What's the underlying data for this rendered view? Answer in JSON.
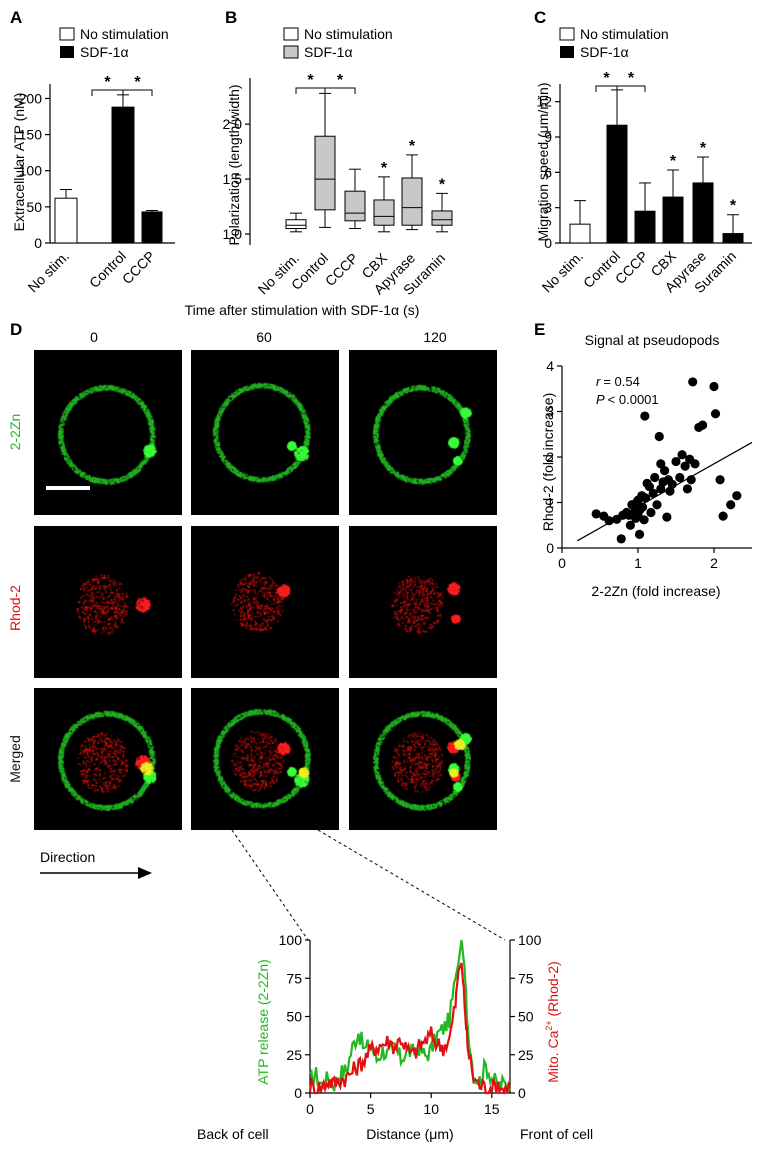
{
  "panels": {
    "A": {
      "letter": "A",
      "legend": {
        "none": "No stimulation",
        "sdf": "SDF-1α"
      },
      "sig": [
        "*",
        "*"
      ],
      "chart_data": {
        "type": "bar",
        "ylabel": "Extracellular ATP (nM)",
        "categories": [
          "No stim.",
          "Control",
          "CCCP"
        ],
        "values": [
          62,
          188,
          43
        ],
        "errors": [
          12,
          17,
          2
        ],
        "fills": [
          "white",
          "black",
          "black"
        ],
        "ylim": [
          0,
          200
        ],
        "yticks": [
          "0",
          "50",
          "100",
          "150",
          "200"
        ]
      }
    },
    "B": {
      "letter": "B",
      "legend": {
        "none": "No stimulation",
        "sdf": "SDF-1α"
      },
      "sig": [
        "*",
        "*",
        "*",
        "*",
        "*"
      ],
      "chart_data": {
        "type": "box",
        "ylabel": "Polarization (length/width)",
        "categories": [
          "No stim.",
          "Control",
          "CCCP",
          "CBX",
          "Apyrase",
          "Suramin"
        ],
        "boxes": [
          {
            "min": 1.02,
            "q1": 1.05,
            "median": 1.08,
            "q3": 1.13,
            "max": 1.19
          },
          {
            "min": 1.06,
            "q1": 1.22,
            "median": 1.5,
            "q3": 1.89,
            "max": 2.28
          },
          {
            "min": 1.05,
            "q1": 1.12,
            "median": 1.19,
            "q3": 1.39,
            "max": 1.59
          },
          {
            "min": 1.02,
            "q1": 1.08,
            "median": 1.16,
            "q3": 1.31,
            "max": 1.52
          },
          {
            "min": 1.04,
            "q1": 1.08,
            "median": 1.24,
            "q3": 1.51,
            "max": 1.72
          },
          {
            "min": 1.02,
            "q1": 1.08,
            "median": 1.13,
            "q3": 1.21,
            "max": 1.37
          }
        ],
        "fills": [
          "white",
          "gray",
          "gray",
          "gray",
          "gray",
          "gray"
        ],
        "ylim": [
          0.9,
          2.4
        ],
        "yticks": [
          "1.0",
          "1.5",
          "2.0"
        ]
      }
    },
    "C": {
      "letter": "C",
      "legend": {
        "none": "No stimulation",
        "sdf": "SDF-1α"
      },
      "sig": [
        "*",
        "*",
        "*",
        "*",
        "*"
      ],
      "chart_data": {
        "type": "bar",
        "ylabel": "Migration speed (μm/min)",
        "categories": [
          "No stim.",
          "Control",
          "CCCP",
          "CBX",
          "Apyrase",
          "Suramin"
        ],
        "values": [
          1.6,
          10,
          2.7,
          3.9,
          5.1,
          0.8
        ],
        "errors": [
          2.0,
          3.0,
          2.4,
          2.3,
          2.2,
          1.6
        ],
        "fills": [
          "white",
          "black",
          "black",
          "black",
          "black",
          "black"
        ],
        "ylim": [
          0,
          13
        ],
        "yticks": [
          "0",
          "3",
          "6",
          "9",
          "12"
        ]
      }
    },
    "D": {
      "letter": "D",
      "title": "Time after stimulation with SDF-1α (s)",
      "times": [
        "0",
        "60",
        "120"
      ],
      "rows": [
        "2-2Zn",
        "Rhod-2",
        "Merged"
      ],
      "direction_label": "Direction"
    },
    "E": {
      "letter": "E",
      "title": "Signal at pseudopods",
      "stat_r_label": "r",
      "stat_r_value": "= 0.54",
      "stat_p_label": "P",
      "stat_p_value": "< 0.0001",
      "chart_data": {
        "type": "scatter",
        "xlabel": "2-2Zn (fold increase)",
        "ylabel": "Rhod-2 (fold increase)",
        "xlim": [
          0,
          2.5
        ],
        "ylim": [
          0,
          4
        ],
        "xticks": [
          "0",
          "1",
          "2"
        ],
        "yticks": [
          "0",
          "1",
          "2",
          "3",
          "4"
        ],
        "fit": {
          "slope": 0.94,
          "intercept": -0.03
        },
        "points": [
          [
            0.45,
            0.75
          ],
          [
            0.55,
            0.7
          ],
          [
            0.62,
            0.6
          ],
          [
            0.72,
            0.63
          ],
          [
            0.78,
            0.2
          ],
          [
            0.8,
            0.72
          ],
          [
            0.85,
            0.78
          ],
          [
            0.88,
            0.72
          ],
          [
            0.9,
            0.5
          ],
          [
            0.92,
            0.95
          ],
          [
            0.95,
            0.78
          ],
          [
            0.97,
            0.65
          ],
          [
            0.98,
            1.0
          ],
          [
            1.0,
            0.75
          ],
          [
            1.0,
            1.05
          ],
          [
            1.02,
            0.3
          ],
          [
            1.03,
            0.85
          ],
          [
            1.05,
            1.15
          ],
          [
            1.06,
            0.9
          ],
          [
            1.08,
            0.62
          ],
          [
            1.09,
            2.9
          ],
          [
            1.1,
            1.1
          ],
          [
            1.12,
            1.42
          ],
          [
            1.15,
            1.35
          ],
          [
            1.17,
            0.78
          ],
          [
            1.2,
            1.2
          ],
          [
            1.22,
            1.55
          ],
          [
            1.25,
            0.95
          ],
          [
            1.28,
            2.45
          ],
          [
            1.3,
            1.85
          ],
          [
            1.3,
            1.3
          ],
          [
            1.33,
            1.45
          ],
          [
            1.35,
            1.7
          ],
          [
            1.38,
            0.68
          ],
          [
            1.4,
            1.5
          ],
          [
            1.42,
            1.25
          ],
          [
            1.45,
            1.4
          ],
          [
            1.5,
            1.9
          ],
          [
            1.55,
            1.55
          ],
          [
            1.58,
            2.05
          ],
          [
            1.62,
            1.8
          ],
          [
            1.65,
            1.3
          ],
          [
            1.68,
            1.95
          ],
          [
            1.7,
            1.5
          ],
          [
            1.72,
            3.65
          ],
          [
            1.75,
            1.85
          ],
          [
            1.8,
            2.65
          ],
          [
            1.85,
            2.7
          ],
          [
            2.0,
            3.55
          ],
          [
            2.02,
            2.95
          ],
          [
            2.08,
            1.5
          ],
          [
            2.12,
            0.7
          ],
          [
            2.22,
            0.95
          ],
          [
            2.3,
            1.15
          ]
        ]
      }
    },
    "profile": {
      "ylabel_left": "ATP release (2-2Zn)",
      "ylabel_right_prefix": "Mito. Ca",
      "ylabel_right_sup": "2+",
      "ylabel_right_suffix": " (Rhod-2)",
      "xlabel": "Distance (μm)",
      "back_label": "Back of cell",
      "front_label": "Front of cell",
      "chart_data": {
        "type": "line",
        "xlim": [
          0,
          16.5
        ],
        "ylim": [
          0,
          100
        ],
        "xticks": [
          "0",
          "5",
          "10",
          "15"
        ],
        "yticks": [
          "0",
          "25",
          "50",
          "75",
          "100"
        ],
        "series": [
          {
            "color": "#22b822",
            "x": [
              0,
              0.5,
              1,
              1.5,
              2,
              2.5,
              3,
              3.5,
              4,
              4.5,
              5,
              5.5,
              6,
              6.5,
              7,
              7.5,
              8,
              8.5,
              9,
              9.5,
              10,
              10.5,
              11,
              11.5,
              12,
              12.25,
              12.5,
              12.75,
              13,
              13.5,
              14,
              14.5,
              15,
              15.5,
              16,
              16.5
            ],
            "y": [
              8,
              12,
              5,
              10,
              6,
              13,
              15,
              30,
              40,
              28,
              32,
              22,
              28,
              25,
              30,
              22,
              28,
              26,
              30,
              24,
              28,
              38,
              42,
              48,
              75,
              85,
              100,
              82,
              45,
              12,
              8,
              18,
              10,
              5,
              6,
              3
            ]
          },
          {
            "color": "#e01010",
            "x": [
              0,
              0.5,
              1,
              1.5,
              2,
              2.5,
              3,
              3.5,
              4,
              4.5,
              5,
              5.5,
              6,
              6.5,
              7,
              7.5,
              8,
              8.5,
              9,
              9.5,
              10,
              10.5,
              11,
              11.5,
              12,
              12.25,
              12.5,
              12.75,
              13,
              13.5,
              14,
              14.5,
              15,
              15.5,
              16,
              16.5
            ],
            "y": [
              5,
              3,
              4,
              8,
              6,
              9,
              10,
              14,
              18,
              22,
              28,
              30,
              32,
              34,
              30,
              36,
              28,
              25,
              30,
              34,
              38,
              32,
              30,
              35,
              58,
              80,
              85,
              60,
              30,
              10,
              5,
              4,
              3,
              6,
              2,
              3
            ]
          }
        ]
      }
    }
  },
  "colors": {
    "green": "#22b822",
    "red": "#e01010",
    "gray_fill": "#c8c8c8"
  }
}
